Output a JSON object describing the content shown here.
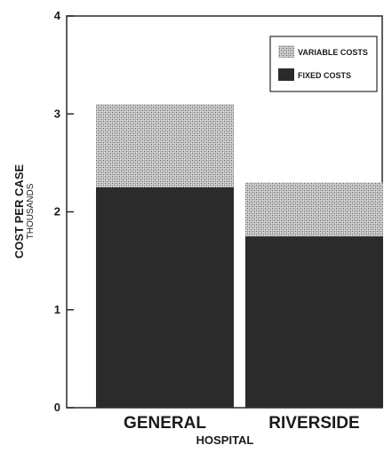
{
  "chart_data": {
    "type": "bar",
    "stacked": true,
    "categories": [
      "GENERAL",
      "RIVERSIDE"
    ],
    "series": [
      {
        "name": "FIXED COSTS",
        "values": [
          2.25,
          1.75
        ],
        "color": "#2b2b2b",
        "pattern": "solid"
      },
      {
        "name": "VARIABLE COSTS",
        "values": [
          0.85,
          0.55
        ],
        "color": "#b8b8b8",
        "pattern": "stipple"
      }
    ],
    "xlabel": "HOSPITAL",
    "ylabel": "COST PER CASE",
    "ylabel_sub": "THOUSANDS",
    "ylim": [
      0,
      4
    ],
    "yticks": [
      "0",
      "1",
      "2",
      "3",
      "4"
    ],
    "grid": false,
    "legend_position": "top-right"
  }
}
